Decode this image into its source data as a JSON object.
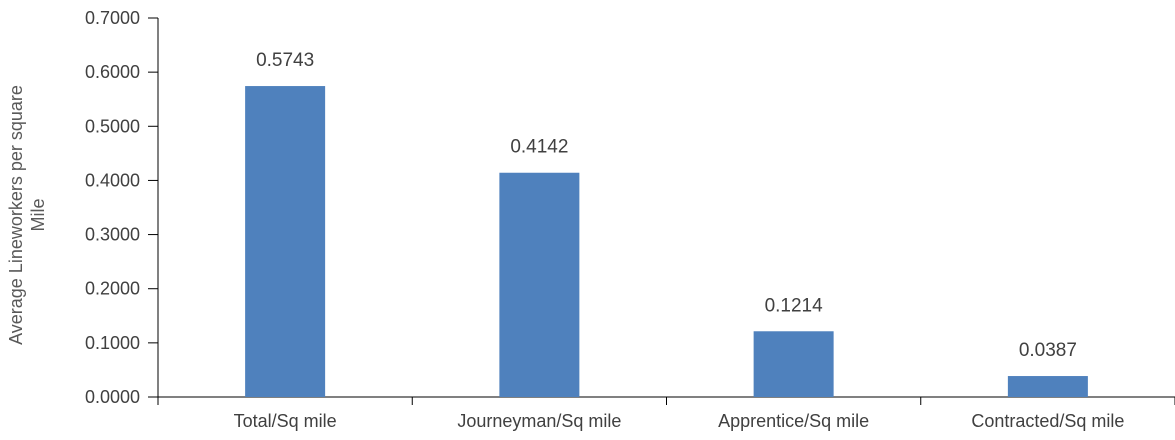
{
  "chart_data": {
    "type": "bar",
    "categories": [
      "Total/Sq mile",
      "Journeyman/Sq mile",
      "Apprentice/Sq mile",
      "Contracted/Sq mile"
    ],
    "values": [
      0.5743,
      0.4142,
      0.1214,
      0.0387
    ],
    "value_labels": [
      "0.5743",
      "0.4142",
      "0.1214",
      "0.0387"
    ],
    "ylabel_lines": [
      "Average Lineworkers per square",
      "Mile"
    ],
    "ylim": [
      0,
      0.7
    ],
    "yticks": [
      0,
      0.1,
      0.2,
      0.3,
      0.4,
      0.5,
      0.6,
      0.7
    ],
    "ytick_labels": [
      "0.0000",
      "0.1000",
      "0.2000",
      "0.3000",
      "0.4000",
      "0.5000",
      "0.6000",
      "0.7000"
    ],
    "grid": false,
    "legend": false,
    "bar_color": "#4f81bd",
    "axis_color": "#000000",
    "text_color": "#404040"
  }
}
